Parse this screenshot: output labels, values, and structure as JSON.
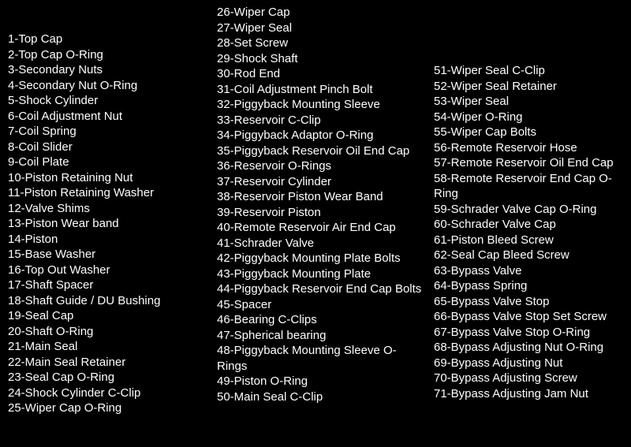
{
  "columns": [
    {
      "items": [
        "1-Top Cap",
        "2-Top Cap O-Ring",
        "3-Secondary Nuts",
        "4-Secondary Nut O-Ring",
        "5-Shock Cylinder",
        "6-Coil Adjustment Nut",
        "7-Coil Spring",
        "8-Coil Slider",
        "9-Coil Plate",
        "10-Piston Retaining Nut",
        "11-Piston Retaining Washer",
        "12-Valve Shims",
        "13-Piston Wear band",
        "14-Piston",
        "15-Base Washer",
        "16-Top Out Washer",
        "17-Shaft Spacer",
        "18-Shaft Guide / DU Bushing",
        "19-Seal Cap",
        "20-Shaft O-Ring",
        "21-Main Seal",
        "22-Main Seal Retainer",
        "23-Seal Cap O-Ring",
        "24-Shock Cylinder C-Clip",
        "25-Wiper Cap O-Ring"
      ]
    },
    {
      "items": [
        "26-Wiper Cap",
        "27-Wiper Seal",
        "28-Set Screw",
        "29-Shock Shaft",
        "30-Rod End",
        "31-Coil Adjustment Pinch Bolt",
        "32-Piggyback Mounting Sleeve",
        "33-Reservoir C-Clip",
        "34-Piggyback Adaptor O-Ring",
        "35-Piggyback Reservoir Oil End Cap",
        "36-Reservoir O-Rings",
        "37-Reservoir Cylinder",
        "38-Reservoir Piston Wear Band",
        "39-Reservoir Piston",
        "40-Remote Reservoir Air End Cap",
        "41-Schrader Valve",
        "42-Piggyback Mounting Plate Bolts",
        "43-Piggyback Mounting Plate",
        "44-Piggyback Reservoir End Cap Bolts",
        "45-Spacer",
        "46-Bearing C-Clips",
        "47-Spherical bearing",
        "48-Piggyback Mounting Sleeve O-Rings",
        "49-Piston O-Ring",
        "50-Main Seal C-Clip"
      ]
    },
    {
      "items": [
        "51-Wiper Seal C-Clip",
        "52-Wiper Seal Retainer",
        "53-Wiper Seal",
        "54-Wiper O-Ring",
        "55-Wiper Cap Bolts",
        "56-Remote Reservoir Hose",
        "57-Remote Reservoir Oil End Cap",
        "58-Remote Reservoir End Cap O-Ring",
        "59-Schrader Valve Cap O-Ring",
        "60-Schrader Valve Cap",
        "61-Piston Bleed Screw",
        "62-Seal Cap Bleed Screw",
        "63-Bypass Valve",
        "64-Bypass Spring",
        "65-Bypass Valve Stop",
        "66-Bypass Valve Stop Set Screw",
        "67-Bypass Valve Stop O-Ring",
        "68-Bypass Adjusting Nut O-Ring",
        "69-Bypass Adjusting Nut",
        "70-Bypass Adjusting Screw",
        "71-Bypass Adjusting Jam Nut"
      ]
    }
  ]
}
